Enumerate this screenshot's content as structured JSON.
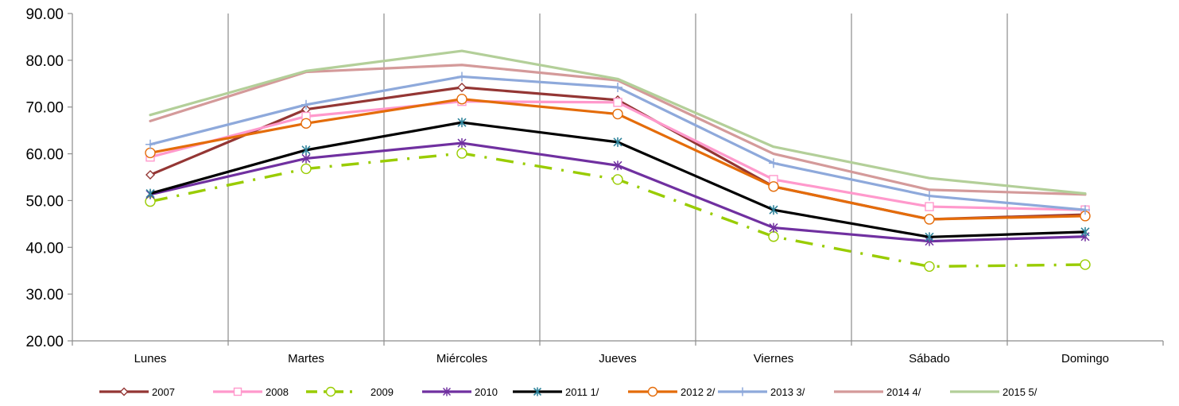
{
  "chart_data": {
    "type": "line",
    "categories": [
      "Lunes",
      "Martes",
      "Miércoles",
      "Jueves",
      "Viernes",
      "Sábado",
      "Domingo"
    ],
    "ylim": [
      20,
      90
    ],
    "yticks": [
      "20.00",
      "30.00",
      "40.00",
      "50.00",
      "60.00",
      "70.00",
      "80.00",
      "90.00"
    ],
    "grid": "vertical separators between categories",
    "legend": "bottom",
    "series": [
      {
        "name": "2007",
        "color": "#943634",
        "marker": "diamond",
        "dash": "solid",
        "values": [
          55.5,
          69.5,
          74.2,
          71.5,
          53.0,
          46.0,
          47.0
        ]
      },
      {
        "name": "2008",
        "color": "#FF99CC",
        "marker": "square",
        "dash": "solid",
        "values": [
          59.3,
          68.0,
          71.2,
          71.0,
          54.5,
          48.7,
          48.0
        ]
      },
      {
        "name": "2009",
        "color": "#99CC00",
        "marker": "circle",
        "dash": "dashdot",
        "values": [
          49.8,
          56.8,
          60.1,
          54.5,
          42.3,
          35.9,
          36.3
        ]
      },
      {
        "name": "2010",
        "color": "#7030A0",
        "marker": "star",
        "dash": "solid",
        "values": [
          51.3,
          59.0,
          62.3,
          57.5,
          44.2,
          41.3,
          42.3
        ]
      },
      {
        "name": "2011 1/",
        "color": "#000000",
        "marker": "asterisk",
        "dash": "solid",
        "values": [
          51.5,
          60.8,
          66.7,
          62.5,
          48.0,
          42.2,
          43.3
        ]
      },
      {
        "name": "2012 2/",
        "color": "#E46C0A",
        "marker": "circle",
        "dash": "solid",
        "values": [
          60.2,
          66.5,
          71.7,
          68.5,
          53.0,
          46.0,
          46.7
        ]
      },
      {
        "name": "2013 3/",
        "color": "#8EA9DB",
        "marker": "plus",
        "dash": "solid",
        "values": [
          62.0,
          70.5,
          76.5,
          74.2,
          58.0,
          51.0,
          48.0
        ]
      },
      {
        "name": "2014 4/",
        "color": "#D49A9A",
        "marker": "none",
        "dash": "solid",
        "values": [
          67.0,
          77.5,
          79.0,
          75.7,
          60.0,
          52.3,
          51.3
        ]
      },
      {
        "name": "2015 5/",
        "color": "#B3CF99",
        "marker": "none",
        "dash": "solid",
        "values": [
          68.3,
          77.7,
          82.0,
          76.0,
          61.5,
          54.8,
          51.5
        ]
      }
    ]
  }
}
